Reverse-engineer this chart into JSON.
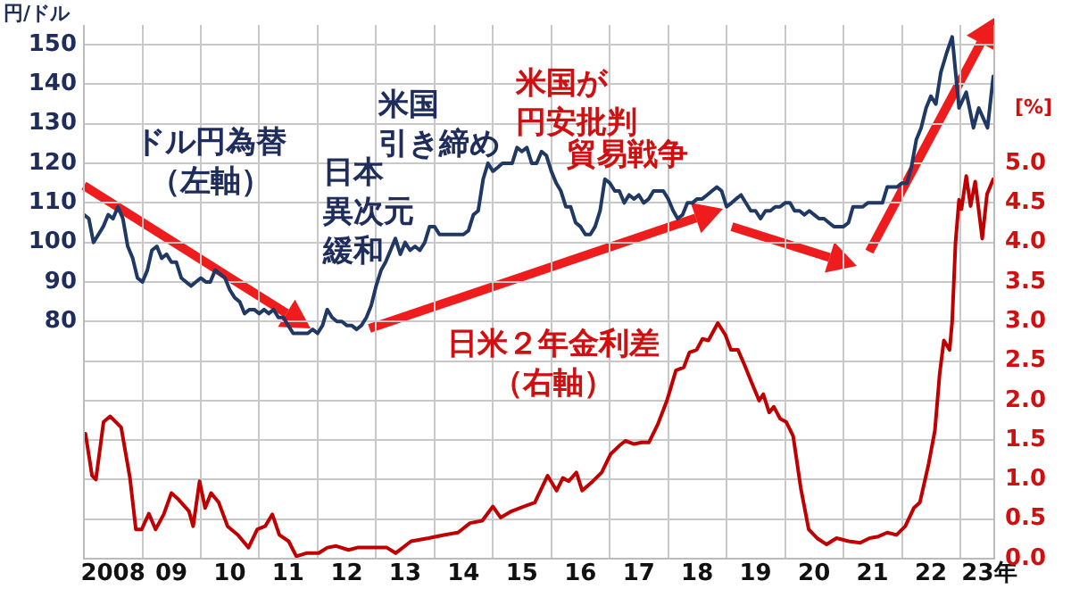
{
  "chart_data": {
    "type": "line",
    "ylabel": "円/ドル",
    "y2label": "[%]",
    "xlim": [
      "2008-01-01",
      "2023-08-01"
    ],
    "xticks": [
      {
        "value": "2008-01-01",
        "label": null
      },
      {
        "value": "2008-07-01",
        "label": "2008"
      },
      {
        "value": "2009-01-01",
        "label": null
      },
      {
        "value": "2009-07-01",
        "label": "09"
      },
      {
        "value": "2010-01-01",
        "label": null
      },
      {
        "value": "2010-07-01",
        "label": "10"
      },
      {
        "value": "2011-01-01",
        "label": null
      },
      {
        "value": "2011-07-01",
        "label": "11"
      },
      {
        "value": "2012-01-01",
        "label": null
      },
      {
        "value": "2012-07-01",
        "label": "12"
      },
      {
        "value": "2013-01-01",
        "label": null
      },
      {
        "value": "2013-07-01",
        "label": "13"
      },
      {
        "value": "2014-01-01",
        "label": null
      },
      {
        "value": "2014-07-01",
        "label": "14"
      },
      {
        "value": "2015-01-01",
        "label": null
      },
      {
        "value": "2015-07-01",
        "label": "15"
      },
      {
        "value": "2016-01-01",
        "label": null
      },
      {
        "value": "2016-07-01",
        "label": "16"
      },
      {
        "value": "2017-01-01",
        "label": null
      },
      {
        "value": "2017-07-01",
        "label": "17"
      },
      {
        "value": "2018-01-01",
        "label": null
      },
      {
        "value": "2018-07-01",
        "label": "18"
      },
      {
        "value": "2019-01-01",
        "label": null
      },
      {
        "value": "2019-07-01",
        "label": "19"
      },
      {
        "value": "2020-01-01",
        "label": null
      },
      {
        "value": "2020-07-01",
        "label": "20"
      },
      {
        "value": "2021-01-01",
        "label": null
      },
      {
        "value": "2021-07-01",
        "label": "21"
      },
      {
        "value": "2022-01-01",
        "label": null
      },
      {
        "value": "2022-07-01",
        "label": "22"
      },
      {
        "value": "2023-01-01",
        "label": null
      },
      {
        "value": "2023-07-01",
        "label": "23年"
      }
    ],
    "ylim": [
      20,
      155
    ],
    "yticks": [
      80,
      90,
      100,
      110,
      120,
      130,
      140,
      150
    ],
    "y2lim": [
      0,
      6.75
    ],
    "y2ticks": [
      {
        "value": 0,
        "label": "0.0"
      },
      {
        "value": 0.5,
        "label": "0.5"
      },
      {
        "value": 1,
        "label": "1.0"
      },
      {
        "value": 1.5,
        "label": "1.5"
      },
      {
        "value": 2,
        "label": "2.0"
      },
      {
        "value": 2.5,
        "label": "2.5"
      },
      {
        "value": 3,
        "label": "3.0"
      },
      {
        "value": 3.5,
        "label": "3.5"
      },
      {
        "value": 4,
        "label": "4.0"
      },
      {
        "value": 4.5,
        "label": "4.5"
      },
      {
        "value": 5,
        "label": "5.0"
      }
    ],
    "grid": true,
    "legend": false,
    "marker": "none",
    "line_style": "solid",
    "annotations": [
      "ドル円為替（左軸）",
      "日本異次元緩和",
      "米国引き締め",
      "米国が円安批判",
      {
        "text": "貿易戦争",
        "x": "2018-07-01",
        "y": 113
      },
      "日米２年金利差（右軸）"
    ],
    "series": [
      {
        "color": "#1f3864",
        "x": [
          "2008-01",
          "2008-02",
          "2008-03",
          "2008-04",
          "2008-05",
          "2008-06",
          "2008-07",
          "2008-08",
          "2008-09",
          "2008-10",
          "2008-11",
          "2008-12",
          "2009-01",
          "2009-02",
          "2009-03",
          "2009-04",
          "2009-05",
          "2009-06",
          "2009-07",
          "2009-08",
          "2009-09",
          "2009-10",
          "2009-11",
          "2009-12",
          "2010-01",
          "2010-02",
          "2010-03",
          "2010-04",
          "2010-05",
          "2010-06",
          "2010-07",
          "2010-08",
          "2010-09",
          "2010-10",
          "2010-11",
          "2010-12",
          "2011-01",
          "2011-02",
          "2011-03",
          "2011-04",
          "2011-05",
          "2011-06",
          "2011-07",
          "2011-08",
          "2011-09",
          "2011-10",
          "2011-11",
          "2011-12",
          "2012-01",
          "2012-02",
          "2012-03",
          "2012-04",
          "2012-05",
          "2012-06",
          "2012-07",
          "2012-08",
          "2012-09",
          "2012-10",
          "2012-11",
          "2012-12",
          "2013-01",
          "2013-02",
          "2013-03",
          "2013-04",
          "2013-05",
          "2013-06",
          "2013-07",
          "2013-08",
          "2013-09",
          "2013-10",
          "2013-11",
          "2013-12",
          "2014-01",
          "2014-02",
          "2014-03",
          "2014-04",
          "2014-05",
          "2014-06",
          "2014-07",
          "2014-08",
          "2014-09",
          "2014-10",
          "2014-11",
          "2014-12",
          "2015-01",
          "2015-02",
          "2015-03",
          "2015-04",
          "2015-05",
          "2015-06",
          "2015-07",
          "2015-08",
          "2015-09",
          "2015-10",
          "2015-11",
          "2015-12",
          "2016-01",
          "2016-02",
          "2016-03",
          "2016-04",
          "2016-05",
          "2016-06",
          "2016-07",
          "2016-08",
          "2016-09",
          "2016-10",
          "2016-11",
          "2016-12",
          "2017-01",
          "2017-02",
          "2017-03",
          "2017-04",
          "2017-05",
          "2017-06",
          "2017-07",
          "2017-08",
          "2017-09",
          "2017-10",
          "2017-11",
          "2017-12",
          "2018-01",
          "2018-02",
          "2018-03",
          "2018-04",
          "2018-05",
          "2018-06",
          "2018-07",
          "2018-08",
          "2018-09",
          "2018-10",
          "2018-11",
          "2018-12",
          "2019-01",
          "2019-02",
          "2019-03",
          "2019-04",
          "2019-05",
          "2019-06",
          "2019-07",
          "2019-08",
          "2019-09",
          "2019-10",
          "2019-11",
          "2019-12",
          "2020-01",
          "2020-02",
          "2020-03",
          "2020-04",
          "2020-05",
          "2020-06",
          "2020-07",
          "2020-08",
          "2020-09",
          "2020-10",
          "2020-11",
          "2020-12",
          "2021-01",
          "2021-02",
          "2021-03",
          "2021-04",
          "2021-05",
          "2021-06",
          "2021-07",
          "2021-08",
          "2021-09",
          "2021-10",
          "2021-11",
          "2021-12",
          "2022-01",
          "2022-02",
          "2022-03",
          "2022-04",
          "2022-05",
          "2022-06",
          "2022-07",
          "2022-08",
          "2022-09",
          "2022-10-08",
          "2022-11-11",
          "2022-12-24",
          "2023-02-07",
          "2023-03-24",
          "2023-04-26",
          "2023-06-20",
          "2023-07-26"
        ],
        "values": [
          107,
          106,
          100,
          102,
          104,
          107,
          106,
          109,
          106,
          99,
          96,
          91,
          90,
          93,
          98,
          99,
          96,
          97,
          95,
          95,
          91,
          90,
          89,
          90,
          91,
          90,
          90,
          93,
          92,
          91,
          88,
          86,
          85,
          82,
          83,
          83,
          82,
          83,
          82,
          83,
          81,
          81,
          79,
          77,
          77,
          77,
          77,
          78,
          77,
          79,
          83,
          81,
          80,
          80,
          79,
          79,
          78,
          79,
          81,
          84,
          89,
          93,
          95,
          98,
          101,
          97,
          100,
          98,
          99,
          98,
          100,
          104,
          104,
          102,
          102,
          102,
          102,
          102,
          102,
          103,
          107,
          108,
          116,
          120,
          118,
          119,
          120,
          120,
          120,
          124,
          123,
          124,
          120,
          120,
          123,
          122,
          118,
          115,
          113,
          109,
          109,
          105,
          104,
          102,
          102,
          104,
          108,
          116,
          115,
          113,
          113,
          110,
          112,
          111,
          112,
          110,
          111,
          113,
          113,
          113,
          111,
          108,
          106,
          107,
          110,
          110,
          111,
          111,
          112,
          113,
          114,
          113,
          109,
          110,
          111,
          112,
          110,
          108,
          108,
          106,
          108,
          108,
          109,
          109,
          110,
          110,
          108,
          108,
          107,
          108,
          107,
          106,
          106,
          105,
          104,
          104,
          104,
          105,
          109,
          109,
          109,
          110,
          110,
          110,
          110,
          114,
          114,
          114,
          115,
          115,
          119,
          126,
          129,
          134,
          137,
          135,
          143,
          148,
          152,
          134,
          138,
          129,
          134,
          129,
          142
        ]
      },
      {
        "color": "#c00000",
        "axis": "y2",
        "x": [
          "2008-01-11",
          "2008-02-21",
          "2008-03-16",
          "2008-05-03",
          "2008-06-13",
          "2008-08-21",
          "2008-10-15",
          "2008-11-21",
          "2008-12-27",
          "2009-02-10",
          "2009-03-24",
          "2009-05-14",
          "2009-07-01",
          "2009-08-14",
          "2009-10-19",
          "2009-11-14",
          "2009-12-24",
          "2010-01-28",
          "2010-03-06",
          "2010-04-23",
          "2010-06-17",
          "2010-08-21",
          "2010-10-26",
          "2010-12-20",
          "2011-02-07",
          "2011-03-24",
          "2011-05-07",
          "2011-07-04",
          "2011-08-21",
          "2011-10-23",
          "2012-01-08",
          "2012-03-02",
          "2012-04-26",
          "2012-07-12",
          "2012-09-06",
          "2012-11-18",
          "2013-03-09",
          "2013-05-03",
          "2013-08-07",
          "2013-11-25",
          "2014-02-28",
          "2014-05-28",
          "2014-08-11",
          "2014-10-26",
          "2015-01-01",
          "2015-02-18",
          "2015-04-28",
          "2015-07-12",
          "2015-09-20",
          "2015-12-09",
          "2016-02-03",
          "2016-03-13",
          "2016-04-19",
          "2016-06-06",
          "2016-07-12",
          "2016-09-17",
          "2016-11-11",
          "2017-01-05",
          "2017-03-02",
          "2017-04-08",
          "2017-06-02",
          "2017-07-19",
          "2017-09-02",
          "2017-10-28",
          "2017-12-24",
          "2018-02-18",
          "2018-04-08",
          "2018-05-14",
          "2018-06-27",
          "2018-08-03",
          "2018-09-09",
          "2018-11-07",
          "2018-12-24",
          "2019-01-28",
          "2019-03-13",
          "2019-04-23",
          "2019-06-06",
          "2019-07-23",
          "2019-08-18",
          "2019-09-24",
          "2019-10-23",
          "2019-12-02",
          "2020-01-08",
          "2020-02-21",
          "2020-04-08",
          "2020-05-28",
          "2020-07-19",
          "2020-09-17",
          "2020-11-18",
          "2021-02-03",
          "2021-04-15",
          "2021-06-13",
          "2021-08-07",
          "2021-10-01",
          "2021-11-28",
          "2022-01-22",
          "2022-03-16",
          "2022-04-23",
          "2022-06-17",
          "2022-07-26",
          "2022-08-25",
          "2022-09-20",
          "2022-10-26",
          "2022-11-11",
          "2022-12-02",
          "2022-12-24",
          "2023-01-08",
          "2023-02-07",
          "2023-03-06",
          "2023-04-04",
          "2023-05-18",
          "2023-06-17",
          "2023-07-26"
        ],
        "values": [
          1.58,
          1.05,
          1.0,
          1.73,
          1.8,
          1.66,
          1.02,
          0.37,
          0.37,
          0.57,
          0.37,
          0.56,
          0.83,
          0.75,
          0.6,
          0.41,
          0.98,
          0.64,
          0.83,
          0.71,
          0.41,
          0.3,
          0.14,
          0.37,
          0.41,
          0.56,
          0.3,
          0.22,
          0.03,
          0.07,
          0.07,
          0.14,
          0.16,
          0.11,
          0.14,
          0.14,
          0.14,
          0.07,
          0.22,
          0.26,
          0.3,
          0.33,
          0.45,
          0.48,
          0.66,
          0.52,
          0.6,
          0.66,
          0.71,
          1.05,
          0.86,
          1.02,
          0.98,
          1.09,
          0.86,
          0.98,
          1.09,
          1.32,
          1.43,
          1.49,
          1.45,
          1.47,
          1.47,
          1.7,
          2.0,
          2.38,
          2.42,
          2.61,
          2.64,
          2.78,
          2.76,
          2.98,
          2.83,
          2.64,
          2.64,
          2.45,
          2.23,
          2.0,
          2.08,
          1.85,
          1.92,
          1.77,
          1.73,
          1.55,
          0.9,
          0.37,
          0.26,
          0.18,
          0.26,
          0.22,
          0.2,
          0.26,
          0.28,
          0.33,
          0.3,
          0.41,
          0.64,
          0.71,
          1.2,
          1.62,
          2.34,
          2.76,
          2.64,
          3.0,
          4.0,
          4.54,
          4.42,
          4.84,
          4.46,
          4.77,
          4.05,
          4.61,
          4.8
        ]
      }
    ]
  }
}
